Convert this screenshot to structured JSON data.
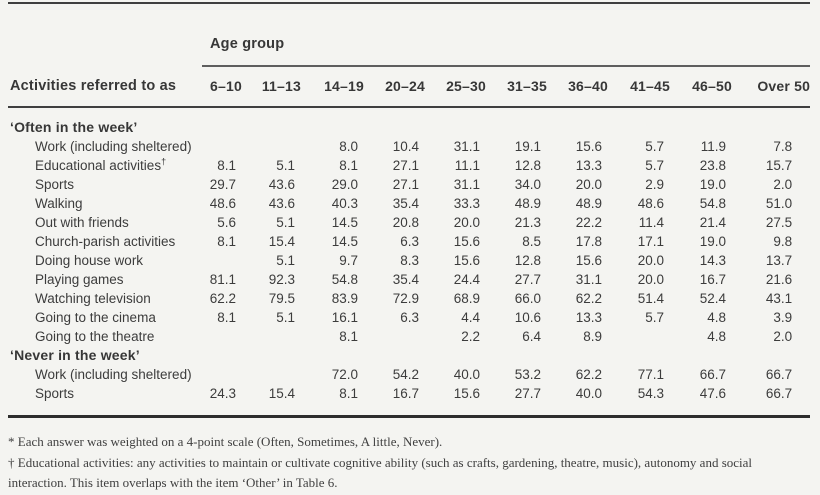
{
  "colors": {
    "paper": "#f4f4f1",
    "ink": "#3c3c3c"
  },
  "table": {
    "age_group_label": "Age group",
    "activities_header": "Activities referred to as",
    "age_columns": [
      "6–10",
      "11–13",
      "14–19",
      "20–24",
      "25–30",
      "31–35",
      "36–40",
      "41–45",
      "46–50",
      "Over 50"
    ],
    "sections": [
      {
        "title": "‘Often in the week’",
        "rows": [
          {
            "label": "Work (including sheltered)",
            "values": [
              "",
              "",
              "8.0",
              "10.4",
              "31.1",
              "19.1",
              "15.6",
              "5.7",
              "11.9",
              "7.8"
            ]
          },
          {
            "label": "Educational activities",
            "sup": "†",
            "values": [
              "8.1",
              "5.1",
              "8.1",
              "27.1",
              "11.1",
              "12.8",
              "13.3",
              "5.7",
              "23.8",
              "15.7"
            ]
          },
          {
            "label": "Sports",
            "values": [
              "29.7",
              "43.6",
              "29.0",
              "27.1",
              "31.1",
              "34.0",
              "20.0",
              "2.9",
              "19.0",
              "2.0"
            ]
          },
          {
            "label": "Walking",
            "values": [
              "48.6",
              "43.6",
              "40.3",
              "35.4",
              "33.3",
              "48.9",
              "48.9",
              "48.6",
              "54.8",
              "51.0"
            ]
          },
          {
            "label": "Out with friends",
            "values": [
              "5.6",
              "5.1",
              "14.5",
              "20.8",
              "20.0",
              "21.3",
              "22.2",
              "11.4",
              "21.4",
              "27.5"
            ]
          },
          {
            "label": "Church-parish activities",
            "values": [
              "8.1",
              "15.4",
              "14.5",
              "6.3",
              "15.6",
              "8.5",
              "17.8",
              "17.1",
              "19.0",
              "9.8"
            ]
          },
          {
            "label": "Doing house work",
            "values": [
              "",
              "5.1",
              "9.7",
              "8.3",
              "15.6",
              "12.8",
              "15.6",
              "20.0",
              "14.3",
              "13.7"
            ]
          },
          {
            "label": "Playing games",
            "values": [
              "81.1",
              "92.3",
              "54.8",
              "35.4",
              "24.4",
              "27.7",
              "31.1",
              "20.0",
              "16.7",
              "21.6"
            ]
          },
          {
            "label": "Watching television",
            "values": [
              "62.2",
              "79.5",
              "83.9",
              "72.9",
              "68.9",
              "66.0",
              "62.2",
              "51.4",
              "52.4",
              "43.1"
            ]
          },
          {
            "label": "Going to the cinema",
            "values": [
              "8.1",
              "5.1",
              "16.1",
              "6.3",
              "4.4",
              "10.6",
              "13.3",
              "5.7",
              "4.8",
              "3.9"
            ]
          },
          {
            "label": "Going to the theatre",
            "values": [
              "",
              "",
              "8.1",
              "",
              "2.2",
              "6.4",
              "8.9",
              "",
              "4.8",
              "2.0"
            ]
          }
        ]
      },
      {
        "title": "‘Never in the week’",
        "rows": [
          {
            "label": "Work (including sheltered)",
            "values": [
              "",
              "",
              "72.0",
              "54.2",
              "40.0",
              "53.2",
              "62.2",
              "77.1",
              "66.7",
              "66.7"
            ]
          },
          {
            "label": "Sports",
            "values": [
              "24.3",
              "15.4",
              "8.1",
              "16.7",
              "15.6",
              "27.7",
              "40.0",
              "54.3",
              "47.6",
              "66.7"
            ]
          }
        ]
      }
    ]
  },
  "footnotes": [
    "* Each answer was weighted on a 4-point scale (Often, Sometimes, A little, Never).",
    "† Educational activities: any activities to maintain or cultivate cognitive ability (such as crafts, gardening, theatre, music), autonomy and social interaction. This item overlaps with the item ‘Other’ in Table 6."
  ]
}
